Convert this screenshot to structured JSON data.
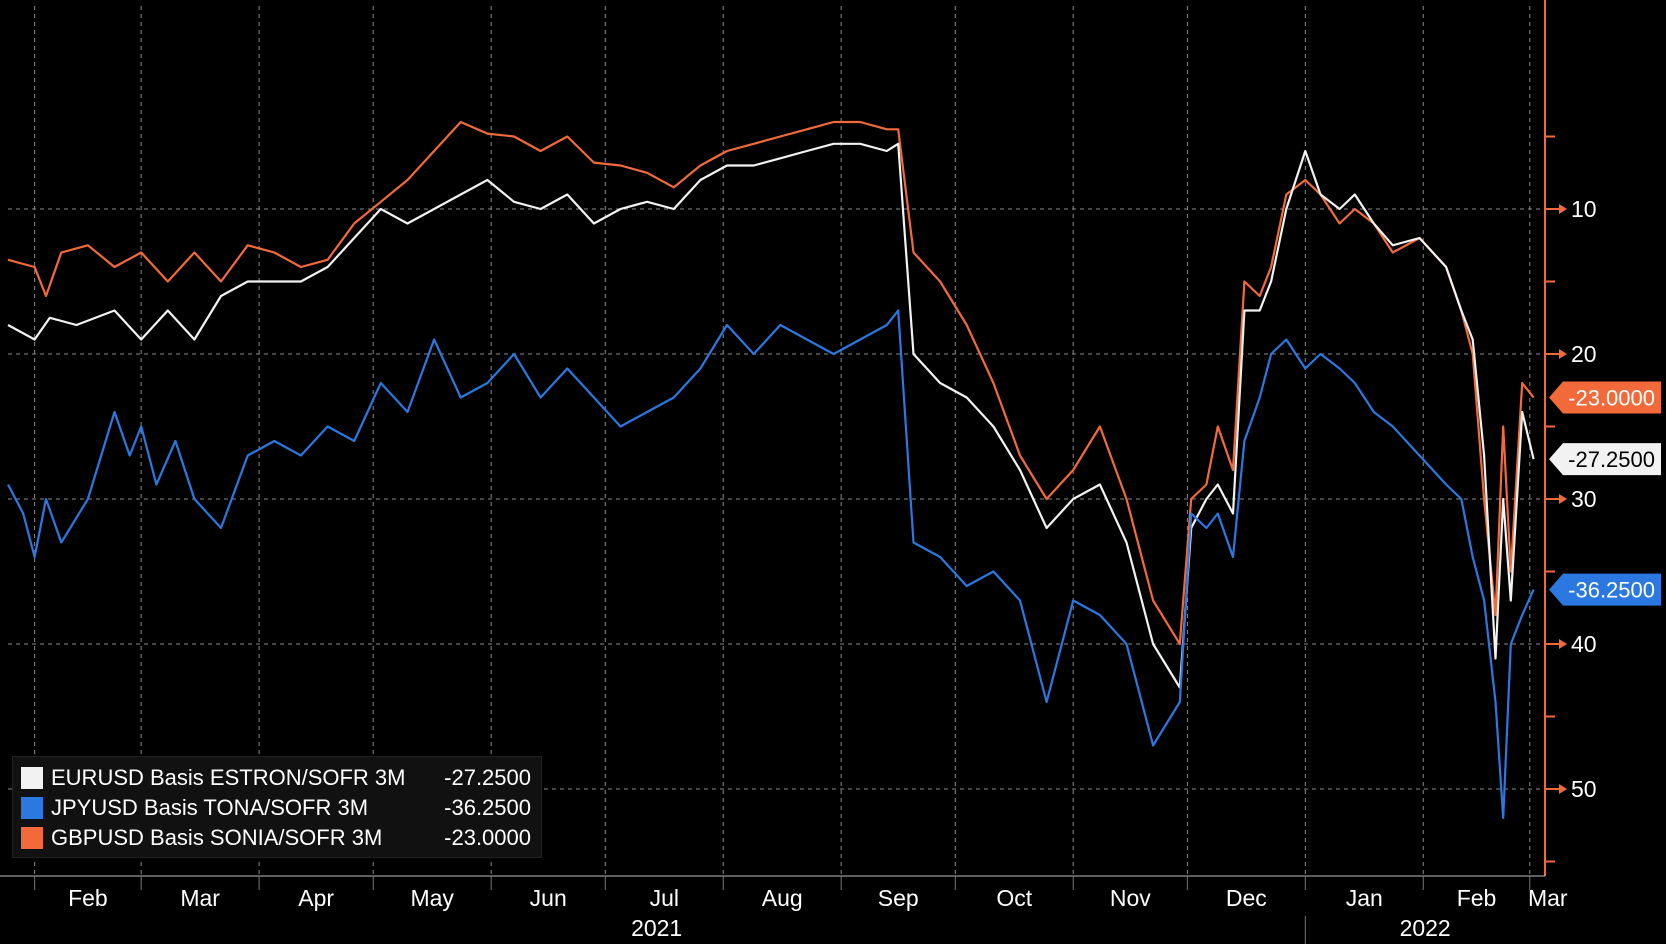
{
  "chart_data": {
    "type": "line",
    "title": "",
    "xlabel": "",
    "ylabel": "",
    "x_start": "2021-01-25",
    "x_end": "2022-03-05",
    "ylim": [
      -56,
      4
    ],
    "y_ticks": [
      -10,
      -20,
      -30,
      -40,
      -50
    ],
    "y_tick_labels": [
      "10",
      "20",
      "30",
      "40",
      "50"
    ],
    "x_ticks": [
      {
        "date": "2021-02-01",
        "label": "Feb"
      },
      {
        "date": "2021-03-01",
        "label": "Mar"
      },
      {
        "date": "2021-04-01",
        "label": "Apr"
      },
      {
        "date": "2021-05-01",
        "label": "May"
      },
      {
        "date": "2021-06-01",
        "label": "Jun"
      },
      {
        "date": "2021-07-01",
        "label": "Jul"
      },
      {
        "date": "2021-08-01",
        "label": "Aug"
      },
      {
        "date": "2021-09-01",
        "label": "Sep"
      },
      {
        "date": "2021-10-01",
        "label": "Oct"
      },
      {
        "date": "2021-11-01",
        "label": "Nov"
      },
      {
        "date": "2021-12-01",
        "label": "Dec"
      },
      {
        "date": "2022-01-01",
        "label": "Jan"
      },
      {
        "date": "2022-02-01",
        "label": "Feb"
      },
      {
        "date": "2022-03-01",
        "label": "Mar"
      }
    ],
    "year_labels": [
      {
        "label": "2021",
        "from": "2021-01-25",
        "to": "2022-01-01"
      },
      {
        "label": "2022",
        "from": "2022-01-01",
        "to": "2022-03-05"
      }
    ],
    "grid": true,
    "legend_position": "bottom-left",
    "series": [
      {
        "name": "GBPUSD Basis SONIA/SOFR 3M",
        "color": "#f26a3a",
        "last_value": "-23.0000",
        "points": [
          [
            "2021-01-25",
            -13.5
          ],
          [
            "2021-02-01",
            -14
          ],
          [
            "2021-02-04",
            -16
          ],
          [
            "2021-02-08",
            -13
          ],
          [
            "2021-02-15",
            -12.5
          ],
          [
            "2021-02-22",
            -14
          ],
          [
            "2021-03-01",
            -13
          ],
          [
            "2021-03-08",
            -15
          ],
          [
            "2021-03-15",
            -13
          ],
          [
            "2021-03-22",
            -15
          ],
          [
            "2021-03-29",
            -12.5
          ],
          [
            "2021-04-05",
            -13
          ],
          [
            "2021-04-12",
            -14
          ],
          [
            "2021-04-19",
            -13.5
          ],
          [
            "2021-04-26",
            -11
          ],
          [
            "2021-05-03",
            -9.5
          ],
          [
            "2021-05-10",
            -8
          ],
          [
            "2021-05-17",
            -6
          ],
          [
            "2021-05-24",
            -4
          ],
          [
            "2021-05-31",
            -4.8
          ],
          [
            "2021-06-07",
            -5
          ],
          [
            "2021-06-14",
            -6
          ],
          [
            "2021-06-21",
            -5
          ],
          [
            "2021-06-28",
            -6.8
          ],
          [
            "2021-07-05",
            -7
          ],
          [
            "2021-07-12",
            -7.5
          ],
          [
            "2021-07-19",
            -8.5
          ],
          [
            "2021-07-26",
            -7
          ],
          [
            "2021-08-02",
            -6
          ],
          [
            "2021-08-09",
            -5.5
          ],
          [
            "2021-08-16",
            -5
          ],
          [
            "2021-08-23",
            -4.5
          ],
          [
            "2021-08-30",
            -4
          ],
          [
            "2021-09-06",
            -4
          ],
          [
            "2021-09-13",
            -4.5
          ],
          [
            "2021-09-16",
            -4.5
          ],
          [
            "2021-09-20",
            -13
          ],
          [
            "2021-09-27",
            -15
          ],
          [
            "2021-10-04",
            -18
          ],
          [
            "2021-10-11",
            -22
          ],
          [
            "2021-10-18",
            -27
          ],
          [
            "2021-10-25",
            -30
          ],
          [
            "2021-11-01",
            -28
          ],
          [
            "2021-11-08",
            -25
          ],
          [
            "2021-11-15",
            -30
          ],
          [
            "2021-11-22",
            -37
          ],
          [
            "2021-11-29",
            -40
          ],
          [
            "2021-12-02",
            -30
          ],
          [
            "2021-12-06",
            -29
          ],
          [
            "2021-12-09",
            -25
          ],
          [
            "2021-12-13",
            -28
          ],
          [
            "2021-12-16",
            -15
          ],
          [
            "2021-12-20",
            -16
          ],
          [
            "2021-12-23",
            -14
          ],
          [
            "2021-12-27",
            -9
          ],
          [
            "2022-01-01",
            -8
          ],
          [
            "2022-01-05",
            -9
          ],
          [
            "2022-01-10",
            -11
          ],
          [
            "2022-01-14",
            -10
          ],
          [
            "2022-01-19",
            -11
          ],
          [
            "2022-01-24",
            -13
          ],
          [
            "2022-01-31",
            -12
          ],
          [
            "2022-02-07",
            -14
          ],
          [
            "2022-02-11",
            -17
          ],
          [
            "2022-02-14",
            -20
          ],
          [
            "2022-02-17",
            -30
          ],
          [
            "2022-02-20",
            -38
          ],
          [
            "2022-02-22",
            -25
          ],
          [
            "2022-02-24",
            -35
          ],
          [
            "2022-02-27",
            -22
          ],
          [
            "2022-03-02",
            -23
          ]
        ]
      },
      {
        "name": "EURUSD Basis ESTRON/SOFR 3M",
        "color": "#f2f2f2",
        "last_value": "-27.2500",
        "points": [
          [
            "2021-01-25",
            -18
          ],
          [
            "2021-02-01",
            -19
          ],
          [
            "2021-02-05",
            -17.5
          ],
          [
            "2021-02-12",
            -18
          ],
          [
            "2021-02-22",
            -17
          ],
          [
            "2021-03-01",
            -19
          ],
          [
            "2021-03-08",
            -17
          ],
          [
            "2021-03-15",
            -19
          ],
          [
            "2021-03-22",
            -16
          ],
          [
            "2021-03-29",
            -15
          ],
          [
            "2021-04-05",
            -15
          ],
          [
            "2021-04-12",
            -15
          ],
          [
            "2021-04-19",
            -14
          ],
          [
            "2021-04-26",
            -12
          ],
          [
            "2021-05-03",
            -10
          ],
          [
            "2021-05-10",
            -11
          ],
          [
            "2021-05-17",
            -10
          ],
          [
            "2021-05-24",
            -9
          ],
          [
            "2021-05-31",
            -8
          ],
          [
            "2021-06-07",
            -9.5
          ],
          [
            "2021-06-14",
            -10
          ],
          [
            "2021-06-21",
            -9
          ],
          [
            "2021-06-28",
            -11
          ],
          [
            "2021-07-05",
            -10
          ],
          [
            "2021-07-12",
            -9.5
          ],
          [
            "2021-07-19",
            -10
          ],
          [
            "2021-07-26",
            -8
          ],
          [
            "2021-08-02",
            -7
          ],
          [
            "2021-08-09",
            -7
          ],
          [
            "2021-08-16",
            -6.5
          ],
          [
            "2021-08-23",
            -6
          ],
          [
            "2021-08-30",
            -5.5
          ],
          [
            "2021-09-06",
            -5.5
          ],
          [
            "2021-09-13",
            -6
          ],
          [
            "2021-09-16",
            -5.5
          ],
          [
            "2021-09-20",
            -20
          ],
          [
            "2021-09-27",
            -22
          ],
          [
            "2021-10-04",
            -23
          ],
          [
            "2021-10-11",
            -25
          ],
          [
            "2021-10-18",
            -28
          ],
          [
            "2021-10-25",
            -32
          ],
          [
            "2021-11-01",
            -30
          ],
          [
            "2021-11-08",
            -29
          ],
          [
            "2021-11-15",
            -33
          ],
          [
            "2021-11-22",
            -40
          ],
          [
            "2021-11-29",
            -43
          ],
          [
            "2021-12-02",
            -32
          ],
          [
            "2021-12-06",
            -30
          ],
          [
            "2021-12-09",
            -29
          ],
          [
            "2021-12-13",
            -31
          ],
          [
            "2021-12-16",
            -17
          ],
          [
            "2021-12-20",
            -17
          ],
          [
            "2021-12-23",
            -15
          ],
          [
            "2021-12-27",
            -10
          ],
          [
            "2022-01-01",
            -6
          ],
          [
            "2022-01-05",
            -9
          ],
          [
            "2022-01-10",
            -10
          ],
          [
            "2022-01-14",
            -9
          ],
          [
            "2022-01-19",
            -11
          ],
          [
            "2022-01-24",
            -12.5
          ],
          [
            "2022-01-31",
            -12
          ],
          [
            "2022-02-07",
            -14
          ],
          [
            "2022-02-11",
            -17
          ],
          [
            "2022-02-14",
            -19
          ],
          [
            "2022-02-17",
            -27
          ],
          [
            "2022-02-20",
            -41
          ],
          [
            "2022-02-22",
            -30
          ],
          [
            "2022-02-24",
            -37
          ],
          [
            "2022-02-27",
            -24
          ],
          [
            "2022-03-02",
            -27.25
          ]
        ]
      },
      {
        "name": "JPYUSD Basis TONA/SOFR 3M",
        "color": "#2a78e0",
        "last_value": "-36.2500",
        "points": [
          [
            "2021-01-25",
            -29
          ],
          [
            "2021-01-29",
            -31
          ],
          [
            "2021-02-01",
            -34
          ],
          [
            "2021-02-04",
            -30
          ],
          [
            "2021-02-08",
            -33
          ],
          [
            "2021-02-15",
            -30
          ],
          [
            "2021-02-22",
            -24
          ],
          [
            "2021-02-26",
            -27
          ],
          [
            "2021-03-01",
            -25
          ],
          [
            "2021-03-05",
            -29
          ],
          [
            "2021-03-10",
            -26
          ],
          [
            "2021-03-15",
            -30
          ],
          [
            "2021-03-22",
            -32
          ],
          [
            "2021-03-29",
            -27
          ],
          [
            "2021-04-05",
            -26
          ],
          [
            "2021-04-12",
            -27
          ],
          [
            "2021-04-19",
            -25
          ],
          [
            "2021-04-26",
            -26
          ],
          [
            "2021-05-03",
            -22
          ],
          [
            "2021-05-10",
            -24
          ],
          [
            "2021-05-17",
            -19
          ],
          [
            "2021-05-24",
            -23
          ],
          [
            "2021-05-31",
            -22
          ],
          [
            "2021-06-07",
            -20
          ],
          [
            "2021-06-14",
            -23
          ],
          [
            "2021-06-21",
            -21
          ],
          [
            "2021-06-28",
            -23
          ],
          [
            "2021-07-05",
            -25
          ],
          [
            "2021-07-12",
            -24
          ],
          [
            "2021-07-19",
            -23
          ],
          [
            "2021-07-26",
            -21
          ],
          [
            "2021-08-02",
            -18
          ],
          [
            "2021-08-09",
            -20
          ],
          [
            "2021-08-16",
            -18
          ],
          [
            "2021-08-23",
            -19
          ],
          [
            "2021-08-30",
            -20
          ],
          [
            "2021-09-06",
            -19
          ],
          [
            "2021-09-13",
            -18
          ],
          [
            "2021-09-16",
            -17
          ],
          [
            "2021-09-20",
            -33
          ],
          [
            "2021-09-27",
            -34
          ],
          [
            "2021-10-04",
            -36
          ],
          [
            "2021-10-11",
            -35
          ],
          [
            "2021-10-18",
            -37
          ],
          [
            "2021-10-25",
            -44
          ],
          [
            "2021-11-01",
            -37
          ],
          [
            "2021-11-08",
            -38
          ],
          [
            "2021-11-15",
            -40
          ],
          [
            "2021-11-22",
            -47
          ],
          [
            "2021-11-29",
            -44
          ],
          [
            "2021-12-02",
            -31
          ],
          [
            "2021-12-06",
            -32
          ],
          [
            "2021-12-09",
            -31
          ],
          [
            "2021-12-13",
            -34
          ],
          [
            "2021-12-16",
            -26
          ],
          [
            "2021-12-20",
            -23
          ],
          [
            "2021-12-23",
            -20
          ],
          [
            "2021-12-27",
            -19
          ],
          [
            "2022-01-01",
            -21
          ],
          [
            "2022-01-05",
            -20
          ],
          [
            "2022-01-10",
            -21
          ],
          [
            "2022-01-14",
            -22
          ],
          [
            "2022-01-19",
            -24
          ],
          [
            "2022-01-24",
            -25
          ],
          [
            "2022-01-31",
            -27
          ],
          [
            "2022-02-07",
            -29
          ],
          [
            "2022-02-11",
            -30
          ],
          [
            "2022-02-14",
            -34
          ],
          [
            "2022-02-17",
            -37
          ],
          [
            "2022-02-20",
            -44
          ],
          [
            "2022-02-22",
            -52
          ],
          [
            "2022-02-24",
            -40
          ],
          [
            "2022-02-27",
            -38
          ],
          [
            "2022-03-02",
            -36.25
          ]
        ]
      }
    ]
  }
}
